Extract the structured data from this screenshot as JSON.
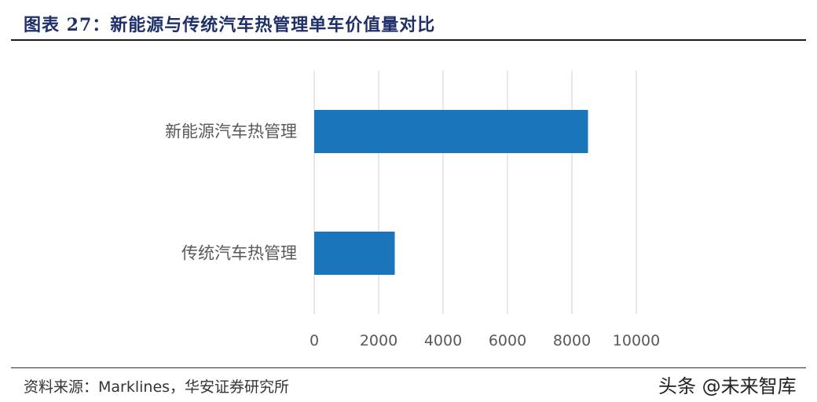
{
  "header": {
    "title": "图表 27：新能源与传统汽车热管理单车价值量对比"
  },
  "chart_data": {
    "type": "bar",
    "orientation": "horizontal",
    "categories": [
      "新能源汽车热管理",
      "传统汽车热管理"
    ],
    "values": [
      8500,
      2500
    ],
    "xlim": [
      0,
      10000
    ],
    "xticks": [
      0,
      2000,
      4000,
      6000,
      8000,
      10000
    ],
    "grid": true,
    "bar_color": "#1b75bb",
    "grid_color": "#d9d9d9"
  },
  "footer": {
    "source": "资料来源：Marklines，华安证券研究所",
    "watermark": "头条 @未来智库"
  }
}
